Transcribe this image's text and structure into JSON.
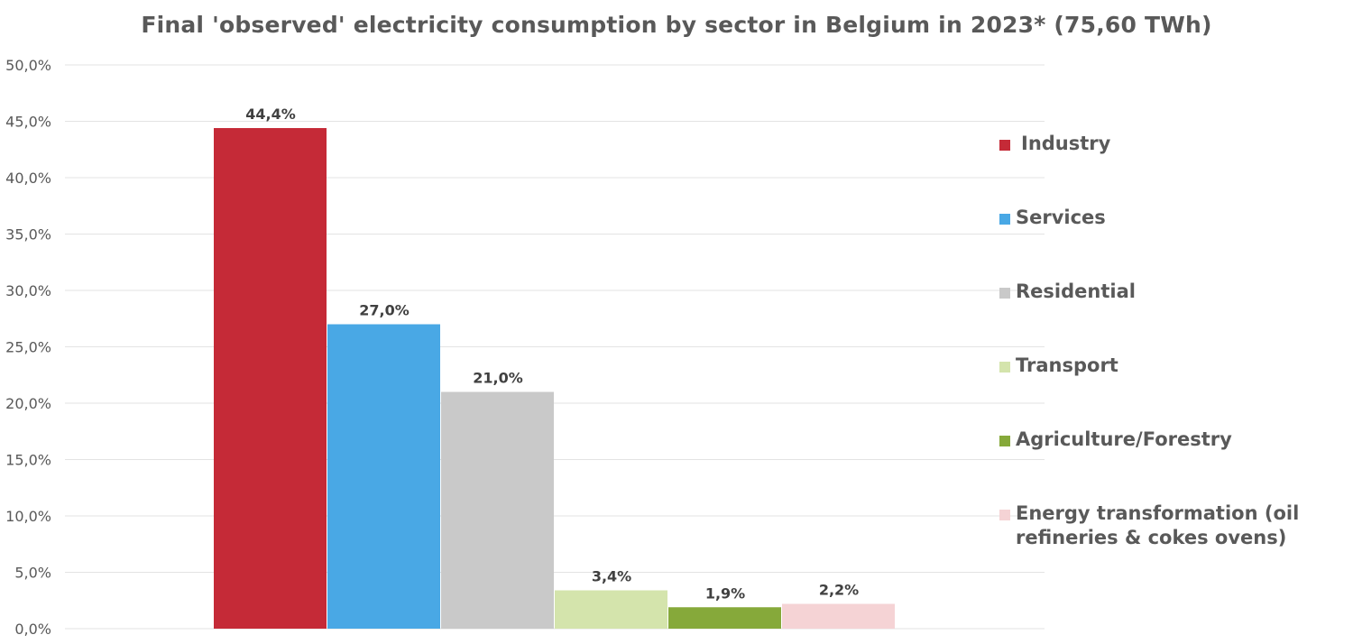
{
  "chart_data": {
    "type": "bar",
    "title": "Final 'observed' electricity consumption by sector in Belgium in 2023* (75,60 TWh)",
    "xlabel": "",
    "ylabel": "",
    "ylim": [
      0,
      50
    ],
    "yticks": [
      "0,0%",
      "5,0%",
      "10,0%",
      "15,0%",
      "20,0%",
      "25,0%",
      "30,0%",
      "35,0%",
      "40,0%",
      "45,0%",
      "50,0%"
    ],
    "ytick_values": [
      0,
      5,
      10,
      15,
      20,
      25,
      30,
      35,
      40,
      45,
      50
    ],
    "grid": true,
    "legend_position": "right",
    "series": [
      {
        "name": "Industry",
        "value": 44.4,
        "label": "44,4%",
        "color": "#C52A37"
      },
      {
        "name": "Services",
        "value": 27.0,
        "label": "27,0%",
        "color": "#49A8E5"
      },
      {
        "name": "Residential",
        "value": 21.0,
        "label": "21,0%",
        "color": "#C9C9C9"
      },
      {
        "name": "Transport",
        "value": 3.4,
        "label": "3,4%",
        "color": "#D4E4AC"
      },
      {
        "name": "Agriculture/Forestry",
        "value": 1.9,
        "label": "1,9%",
        "color": "#86A93A"
      },
      {
        "name": "Energy transformation (oil refineries & cokes ovens)",
        "value": 2.2,
        "label": "2,2%",
        "color": "#F5D3D5"
      }
    ]
  }
}
